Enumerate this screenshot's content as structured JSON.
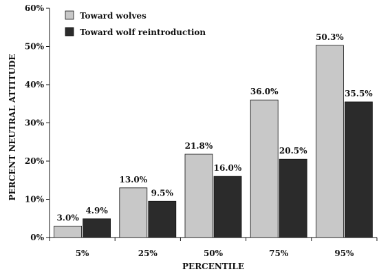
{
  "chart_data": {
    "type": "bar",
    "title": "",
    "xlabel": "PERCENTILE",
    "ylabel": "PERCENT NEUTRAL ATTITUDE",
    "categories": [
      "5%",
      "25%",
      "50%",
      "75%",
      "95%"
    ],
    "ylim": [
      0,
      60
    ],
    "yticks": [
      "0%",
      "10%",
      "20%",
      "30%",
      "40%",
      "50%",
      "60%"
    ],
    "grid": false,
    "legend_position": "top-left",
    "series": [
      {
        "name": "Toward wolves",
        "color": "#c8c8c8",
        "values": [
          3.0,
          13.0,
          21.8,
          36.0,
          50.3
        ],
        "labels": [
          "3.0%",
          "13.0%",
          "21.8%",
          "36.0%",
          "50.3%"
        ]
      },
      {
        "name": "Toward wolf reintroduction",
        "color": "#2b2b2b",
        "values": [
          4.9,
          9.5,
          16.0,
          20.5,
          35.5
        ],
        "labels": [
          "4.9%",
          "9.5%",
          "16.0%",
          "20.5%",
          "35.5%"
        ]
      }
    ]
  }
}
